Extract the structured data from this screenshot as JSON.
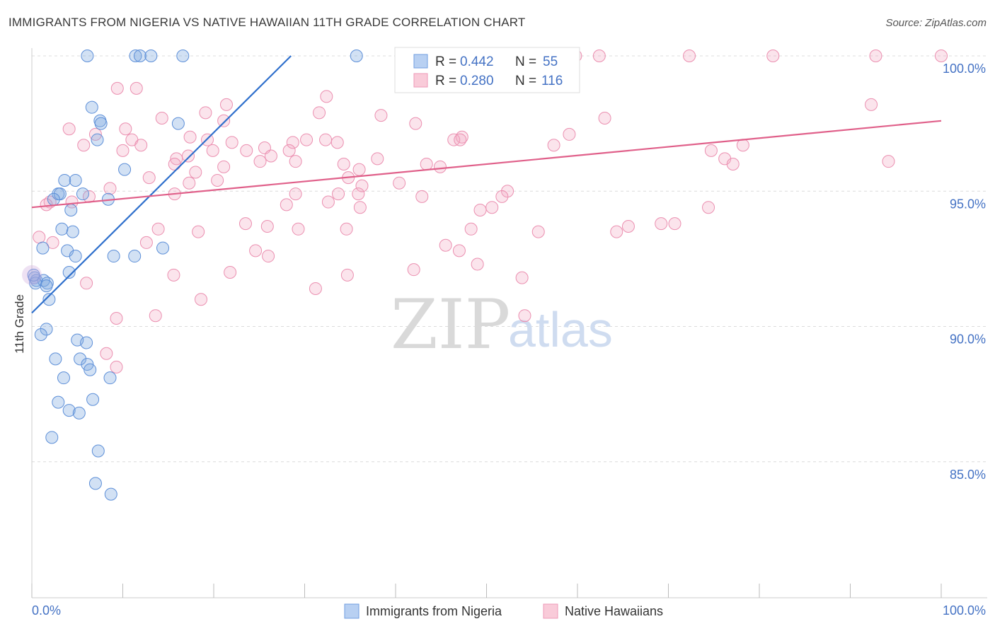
{
  "title": "IMMIGRANTS FROM NIGERIA VS NATIVE HAWAIIAN 11TH GRADE CORRELATION CHART",
  "source": "Source: ZipAtlas.com",
  "watermark": {
    "zip": "ZIP",
    "atlas": "atlas"
  },
  "stats": {
    "r_label": "R =",
    "n_label": "N =",
    "series1": {
      "r": "0.442",
      "n": "55"
    },
    "series2": {
      "r": "0.280",
      "n": "116"
    }
  },
  "chart_data": {
    "type": "scatter",
    "title": "IMMIGRANTS FROM NIGERIA VS NATIVE HAWAIIAN 11TH GRADE CORRELATION CHART",
    "xlabel": "",
    "ylabel": "11th Grade",
    "xlim": [
      0,
      100
    ],
    "ylim": [
      80.5,
      100.5
    ],
    "x_tick_labels": [
      "0.0%",
      "100.0%"
    ],
    "y_ticks": [
      85,
      90,
      95,
      100
    ],
    "y_tick_labels": [
      "85.0%",
      "90.0%",
      "95.0%",
      "100.0%"
    ],
    "grid": true,
    "colors": {
      "series1": "#7fa8e0",
      "series1_line": "#2e6fcc",
      "series2": "#f2a7c0",
      "series2_line": "#e0608a"
    },
    "series": [
      {
        "name": "Immigrants from Nigeria",
        "r": 0.442,
        "n": 55,
        "trend": {
          "x": [
            0.0,
            28.5
          ],
          "y": [
            90.5,
            100.0
          ]
        },
        "points": [
          [
            6.1,
            100
          ],
          [
            11.4,
            100
          ],
          [
            11.9,
            100
          ],
          [
            13.1,
            100
          ],
          [
            16.6,
            100
          ],
          [
            35.7,
            100
          ],
          [
            6.6,
            98.1
          ],
          [
            7.5,
            97.6
          ],
          [
            7.6,
            97.5
          ],
          [
            7.2,
            96.9
          ],
          [
            10.2,
            95.8
          ],
          [
            16.1,
            97.5
          ],
          [
            3.6,
            95.4
          ],
          [
            4.8,
            95.4
          ],
          [
            2.9,
            94.9
          ],
          [
            3.1,
            94.9
          ],
          [
            5.6,
            94.9
          ],
          [
            2.4,
            94.7
          ],
          [
            8.4,
            94.7
          ],
          [
            4.3,
            94.3
          ],
          [
            3.3,
            93.6
          ],
          [
            4.5,
            93.5
          ],
          [
            1.2,
            92.9
          ],
          [
            3.9,
            92.8
          ],
          [
            4.8,
            92.6
          ],
          [
            9.0,
            92.6
          ],
          [
            11.3,
            92.6
          ],
          [
            14.4,
            92.9
          ],
          [
            4.1,
            92.0
          ],
          [
            0.3,
            91.8
          ],
          [
            0.5,
            91.7
          ],
          [
            1.3,
            91.7
          ],
          [
            1.7,
            91.6
          ],
          [
            0.4,
            91.6
          ],
          [
            1.6,
            91.5
          ],
          [
            1.9,
            91.0
          ],
          [
            1.6,
            89.9
          ],
          [
            1.0,
            89.7
          ],
          [
            5.0,
            89.5
          ],
          [
            6.0,
            89.4
          ],
          [
            2.6,
            88.8
          ],
          [
            5.3,
            88.8
          ],
          [
            6.1,
            88.6
          ],
          [
            6.4,
            88.4
          ],
          [
            3.5,
            88.1
          ],
          [
            8.6,
            88.1
          ],
          [
            2.9,
            87.2
          ],
          [
            6.7,
            87.3
          ],
          [
            4.1,
            86.9
          ],
          [
            5.2,
            86.8
          ],
          [
            2.2,
            85.9
          ],
          [
            7.3,
            85.4
          ],
          [
            7.0,
            84.2
          ],
          [
            8.7,
            83.8
          ],
          [
            0.2,
            91.9
          ]
        ]
      },
      {
        "name": "Native Hawaiians",
        "r": 0.28,
        "n": 116,
        "trend": {
          "x": [
            0.0,
            100.0
          ],
          "y": [
            94.4,
            97.6
          ]
        },
        "points": [
          [
            41.0,
            100
          ],
          [
            59.8,
            100
          ],
          [
            62.4,
            100
          ],
          [
            72.3,
            100
          ],
          [
            81.5,
            100
          ],
          [
            92.8,
            100
          ],
          [
            100.0,
            100
          ],
          [
            9.4,
            98.8
          ],
          [
            11.5,
            98.8
          ],
          [
            32.4,
            98.5
          ],
          [
            21.4,
            98.2
          ],
          [
            31.6,
            97.9
          ],
          [
            19.1,
            97.9
          ],
          [
            38.4,
            97.8
          ],
          [
            14.3,
            97.7
          ],
          [
            21.1,
            97.6
          ],
          [
            42.2,
            97.5
          ],
          [
            63.0,
            97.7
          ],
          [
            92.3,
            98.2
          ],
          [
            4.1,
            97.3
          ],
          [
            10.3,
            97.3
          ],
          [
            7.0,
            97.1
          ],
          [
            17.4,
            97.0
          ],
          [
            47.3,
            97.0
          ],
          [
            46.4,
            96.9
          ],
          [
            59.1,
            97.1
          ],
          [
            11.0,
            96.9
          ],
          [
            19.3,
            96.9
          ],
          [
            28.7,
            96.8
          ],
          [
            30.2,
            96.9
          ],
          [
            32.3,
            96.9
          ],
          [
            12.0,
            96.7
          ],
          [
            5.7,
            96.7
          ],
          [
            22.0,
            96.8
          ],
          [
            33.6,
            96.8
          ],
          [
            47.1,
            96.9
          ],
          [
            57.4,
            96.7
          ],
          [
            78.2,
            96.7
          ],
          [
            10.0,
            96.5
          ],
          [
            19.9,
            96.5
          ],
          [
            23.6,
            96.5
          ],
          [
            25.6,
            96.6
          ],
          [
            28.3,
            96.5
          ],
          [
            74.7,
            96.5
          ],
          [
            15.9,
            96.2
          ],
          [
            17.2,
            96.3
          ],
          [
            26.3,
            96.3
          ],
          [
            34.3,
            96.0
          ],
          [
            38.0,
            96.2
          ],
          [
            29.0,
            96.1
          ],
          [
            25.1,
            96.1
          ],
          [
            43.4,
            96.0
          ],
          [
            76.2,
            96.2
          ],
          [
            77.1,
            96.0
          ],
          [
            94.2,
            96.1
          ],
          [
            15.7,
            96.0
          ],
          [
            21.1,
            95.9
          ],
          [
            36.0,
            95.8
          ],
          [
            12.9,
            95.5
          ],
          [
            18.0,
            95.7
          ],
          [
            44.9,
            95.9
          ],
          [
            34.8,
            95.5
          ],
          [
            20.4,
            95.4
          ],
          [
            17.3,
            95.3
          ],
          [
            40.4,
            95.3
          ],
          [
            8.6,
            95.1
          ],
          [
            36.3,
            95.2
          ],
          [
            52.3,
            95.0
          ],
          [
            29.0,
            94.9
          ],
          [
            35.9,
            94.9
          ],
          [
            33.7,
            94.9
          ],
          [
            51.7,
            94.8
          ],
          [
            6.3,
            94.8
          ],
          [
            15.7,
            94.9
          ],
          [
            42.9,
            94.8
          ],
          [
            2.0,
            94.6
          ],
          [
            4.4,
            94.6
          ],
          [
            1.6,
            94.5
          ],
          [
            28.0,
            94.5
          ],
          [
            32.6,
            94.6
          ],
          [
            50.6,
            94.4
          ],
          [
            36.1,
            94.4
          ],
          [
            74.4,
            94.4
          ],
          [
            49.3,
            94.3
          ],
          [
            23.5,
            93.8
          ],
          [
            25.9,
            93.7
          ],
          [
            13.9,
            93.6
          ],
          [
            34.6,
            93.6
          ],
          [
            29.3,
            93.6
          ],
          [
            48.3,
            93.6
          ],
          [
            55.7,
            93.5
          ],
          [
            64.3,
            93.5
          ],
          [
            65.6,
            93.7
          ],
          [
            69.2,
            93.8
          ],
          [
            70.7,
            93.8
          ],
          [
            18.3,
            93.5
          ],
          [
            0.8,
            93.3
          ],
          [
            2.3,
            93.1
          ],
          [
            12.6,
            93.1
          ],
          [
            45.5,
            93.0
          ],
          [
            47.0,
            92.8
          ],
          [
            24.6,
            92.8
          ],
          [
            21.8,
            92.0
          ],
          [
            26.0,
            92.6
          ],
          [
            42.0,
            92.1
          ],
          [
            49.0,
            92.3
          ],
          [
            15.6,
            91.9
          ],
          [
            34.7,
            91.9
          ],
          [
            53.9,
            91.8
          ],
          [
            6.0,
            91.6
          ],
          [
            31.2,
            91.4
          ],
          [
            18.6,
            91.0
          ],
          [
            9.3,
            90.3
          ],
          [
            13.6,
            90.4
          ],
          [
            8.2,
            89.0
          ],
          [
            9.3,
            88.5
          ],
          [
            54.2,
            90.4
          ]
        ]
      }
    ]
  },
  "legend": {
    "items": [
      {
        "label": "Immigrants from Nigeria",
        "color": "#b8d0f2",
        "border": "#6f9ee0"
      },
      {
        "label": "Native Hawaiians",
        "color": "#f9cbd9",
        "border": "#ee9ab8"
      }
    ]
  }
}
